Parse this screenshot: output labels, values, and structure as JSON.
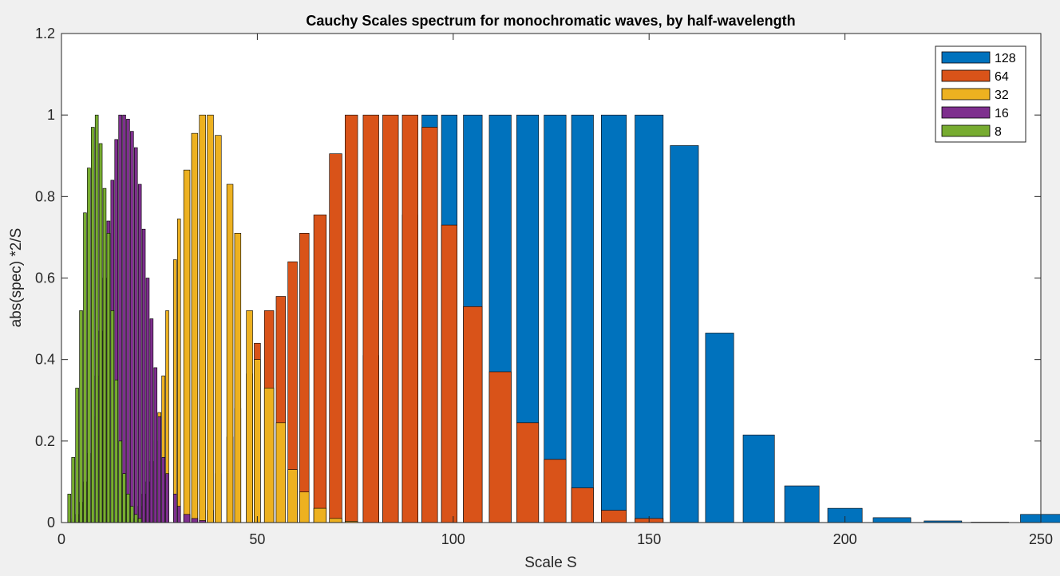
{
  "chart_data": {
    "type": "bar",
    "title": "Cauchy Scales spectrum for monochromatic waves, by half-wavelength",
    "xlabel": "Scale S",
    "ylabel": "abs(spec) *2/S",
    "xlim": [
      0,
      250
    ],
    "ylim": [
      0,
      1.2
    ],
    "xticks": [
      0,
      50,
      100,
      150,
      200,
      250
    ],
    "xtick_labels": [
      "0",
      "50",
      "100",
      "150",
      "200",
      "250"
    ],
    "yticks": [
      0,
      0.2,
      0.4,
      0.6,
      0.8,
      1,
      1.2
    ],
    "ytick_labels": [
      "0",
      "0.2",
      "0.4",
      "0.6",
      "0.8",
      "1",
      "1.2"
    ],
    "grid": false,
    "legend_position": "top-right",
    "series": [
      {
        "name": "128",
        "color": "#0072BD",
        "x": [
          2,
          3,
          4,
          5,
          6,
          7,
          8,
          9,
          10,
          11,
          12,
          13,
          14,
          15,
          16,
          17,
          18,
          19,
          20,
          21,
          22,
          23,
          24,
          25,
          26,
          27,
          29,
          30,
          32,
          34,
          36,
          38,
          40,
          43,
          45,
          48,
          50,
          53,
          56,
          59,
          62,
          66,
          70,
          74,
          79,
          84,
          89,
          94,
          99,
          105,
          112,
          119,
          126,
          133,
          141,
          150,
          159,
          168,
          178,
          189,
          200,
          212,
          225,
          237,
          250
        ],
        "values": [
          0,
          0,
          0,
          0,
          0,
          0,
          0,
          0,
          0,
          0,
          0,
          0,
          0,
          0,
          0,
          0,
          0,
          0,
          0,
          0,
          0,
          0,
          0,
          0,
          0,
          0,
          0,
          0,
          0,
          0,
          0,
          0,
          0,
          0,
          0,
          0,
          0,
          0,
          0,
          0,
          0,
          0,
          0,
          0,
          0.41,
          0.545,
          0.755,
          1.0,
          1.0,
          1.0,
          1.0,
          1.0,
          1.0,
          1.0,
          1.0,
          1.0,
          0.925,
          0.465,
          0.215,
          0.09,
          0.035,
          0.012,
          0.004,
          0.001,
          0.02
        ]
      },
      {
        "name": "64",
        "color": "#D95319",
        "x": [
          2,
          3,
          4,
          5,
          6,
          7,
          8,
          9,
          10,
          11,
          12,
          13,
          14,
          15,
          16,
          17,
          18,
          19,
          20,
          21,
          22,
          23,
          24,
          25,
          26,
          27,
          29,
          30,
          32,
          34,
          36,
          38,
          40,
          43,
          45,
          48,
          50,
          53,
          56,
          59,
          62,
          66,
          70,
          74,
          79,
          84,
          89,
          94,
          99,
          105,
          112,
          119,
          126,
          133,
          141,
          150
        ],
        "values": [
          0,
          0,
          0,
          0,
          0,
          0,
          0,
          0,
          0,
          0,
          0,
          0,
          0,
          0,
          0,
          0,
          0,
          0,
          0,
          0,
          0,
          0,
          0,
          0,
          0,
          0,
          0,
          0,
          0,
          0,
          0,
          0.03,
          0.12,
          0.21,
          0.28,
          0.365,
          0.44,
          0.52,
          0.555,
          0.64,
          0.71,
          0.755,
          0.905,
          1.0,
          1.0,
          1.0,
          1.0,
          0.97,
          0.73,
          0.53,
          0.37,
          0.245,
          0.155,
          0.085,
          0.03,
          0.01
        ]
      },
      {
        "name": "32",
        "color": "#EDB120",
        "x": [
          2,
          3,
          4,
          5,
          6,
          7,
          8,
          9,
          10,
          11,
          12,
          13,
          14,
          15,
          16,
          17,
          18,
          19,
          20,
          21,
          22,
          23,
          24,
          25,
          26,
          27,
          29,
          30,
          32,
          34,
          36,
          38,
          40,
          43,
          45,
          48,
          50,
          53,
          56,
          59,
          62,
          66,
          70,
          74,
          79
        ],
        "values": [
          0,
          0,
          0,
          0,
          0,
          0,
          0,
          0,
          0,
          0,
          0,
          0,
          0,
          0,
          0,
          0,
          0.01,
          0.02,
          0.04,
          0.07,
          0.1,
          0.15,
          0.2,
          0.27,
          0.36,
          0.52,
          0.645,
          0.745,
          0.865,
          0.955,
          1.0,
          1.0,
          0.95,
          0.83,
          0.71,
          0.52,
          0.4,
          0.33,
          0.245,
          0.13,
          0.075,
          0.035,
          0.01,
          0.003,
          0
        ]
      },
      {
        "name": "16",
        "color": "#7E2F8E",
        "x": [
          2,
          3,
          4,
          5,
          6,
          7,
          8,
          9,
          10,
          11,
          12,
          13,
          14,
          15,
          16,
          17,
          18,
          19,
          20,
          21,
          22,
          23,
          24,
          25,
          26,
          27,
          29,
          30,
          32,
          34,
          36,
          38,
          40
        ],
        "values": [
          0,
          0.01,
          0.02,
          0.05,
          0.1,
          0.17,
          0.26,
          0.36,
          0.47,
          0.6,
          0.74,
          0.84,
          0.94,
          1.0,
          1.0,
          0.99,
          0.96,
          0.92,
          0.83,
          0.72,
          0.6,
          0.5,
          0.38,
          0.26,
          0.16,
          0.12,
          0.07,
          0.04,
          0.02,
          0.01,
          0.005,
          0,
          0
        ]
      },
      {
        "name": "8",
        "color": "#77AC30",
        "x": [
          2,
          3,
          4,
          5,
          6,
          7,
          8,
          9,
          10,
          11,
          12,
          13,
          14,
          15,
          16,
          17,
          18,
          19,
          20
        ],
        "values": [
          0.07,
          0.16,
          0.33,
          0.52,
          0.76,
          0.87,
          0.97,
          1.0,
          0.93,
          0.82,
          0.71,
          0.52,
          0.35,
          0.2,
          0.12,
          0.07,
          0.04,
          0.02,
          0.01
        ]
      }
    ]
  }
}
